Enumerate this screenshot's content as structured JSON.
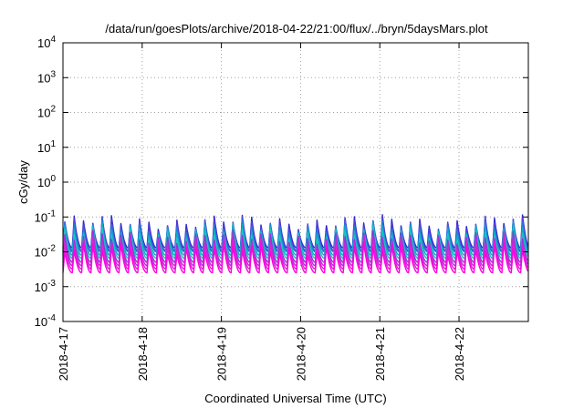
{
  "chart_data": {
    "type": "line",
    "title": "/data/run/goesPlots/archive/2018-04-22/21:00/flux/../bryn/5daysMars.plot",
    "xlabel": "Coordinated Universal Time (UTC)",
    "ylabel": "cGy/day",
    "yscale": "log",
    "ylim": [
      0.0001,
      10000
    ],
    "xlim": [
      "2018-04-17T00:00",
      "2018-04-22T21:00"
    ],
    "grid": true,
    "x_ticks": [
      "2018-4-17",
      "2018-4-18",
      "2018-4-19",
      "2018-4-20",
      "2018-4-21",
      "2018-4-22"
    ],
    "y_ticks": [
      {
        "base": "10",
        "exp": "-4",
        "value": 0.0001
      },
      {
        "base": "10",
        "exp": "-3",
        "value": 0.001
      },
      {
        "base": "10",
        "exp": "-2",
        "value": 0.01
      },
      {
        "base": "10",
        "exp": "-1",
        "value": 0.1
      },
      {
        "base": "10",
        "exp": "0",
        "value": 1
      },
      {
        "base": "10",
        "exp": "1",
        "value": 10
      },
      {
        "base": "10",
        "exp": "2",
        "value": 100
      },
      {
        "base": "10",
        "exp": "3",
        "value": 1000
      },
      {
        "base": "10",
        "exp": "4",
        "value": 10000
      }
    ],
    "pattern": {
      "cycle_hours": 2.83,
      "start": "2018-04-17T00:00",
      "end": "2018-04-22T21:00"
    },
    "series": [
      {
        "color": "#2a2ad0",
        "peak": 0.072,
        "trough": 0.013
      },
      {
        "color": "#5a3cd8",
        "peak": 0.062,
        "trough": 0.011
      },
      {
        "color": "#1f7fd6",
        "peak": 0.052,
        "trough": 0.01
      },
      {
        "color": "#14a8c8",
        "peak": 0.042,
        "trough": 0.008
      },
      {
        "color": "#18c6c0",
        "peak": 0.034,
        "trough": 0.0065
      },
      {
        "color": "#9a30d8",
        "peak": 0.026,
        "trough": 0.005
      },
      {
        "color": "#c02ad4",
        "peak": 0.02,
        "trough": 0.004
      },
      {
        "color": "#e020d8",
        "peak": 0.016,
        "trough": 0.0032
      },
      {
        "color": "#ff00e0",
        "peak": 0.012,
        "trough": 0.0025
      }
    ]
  }
}
